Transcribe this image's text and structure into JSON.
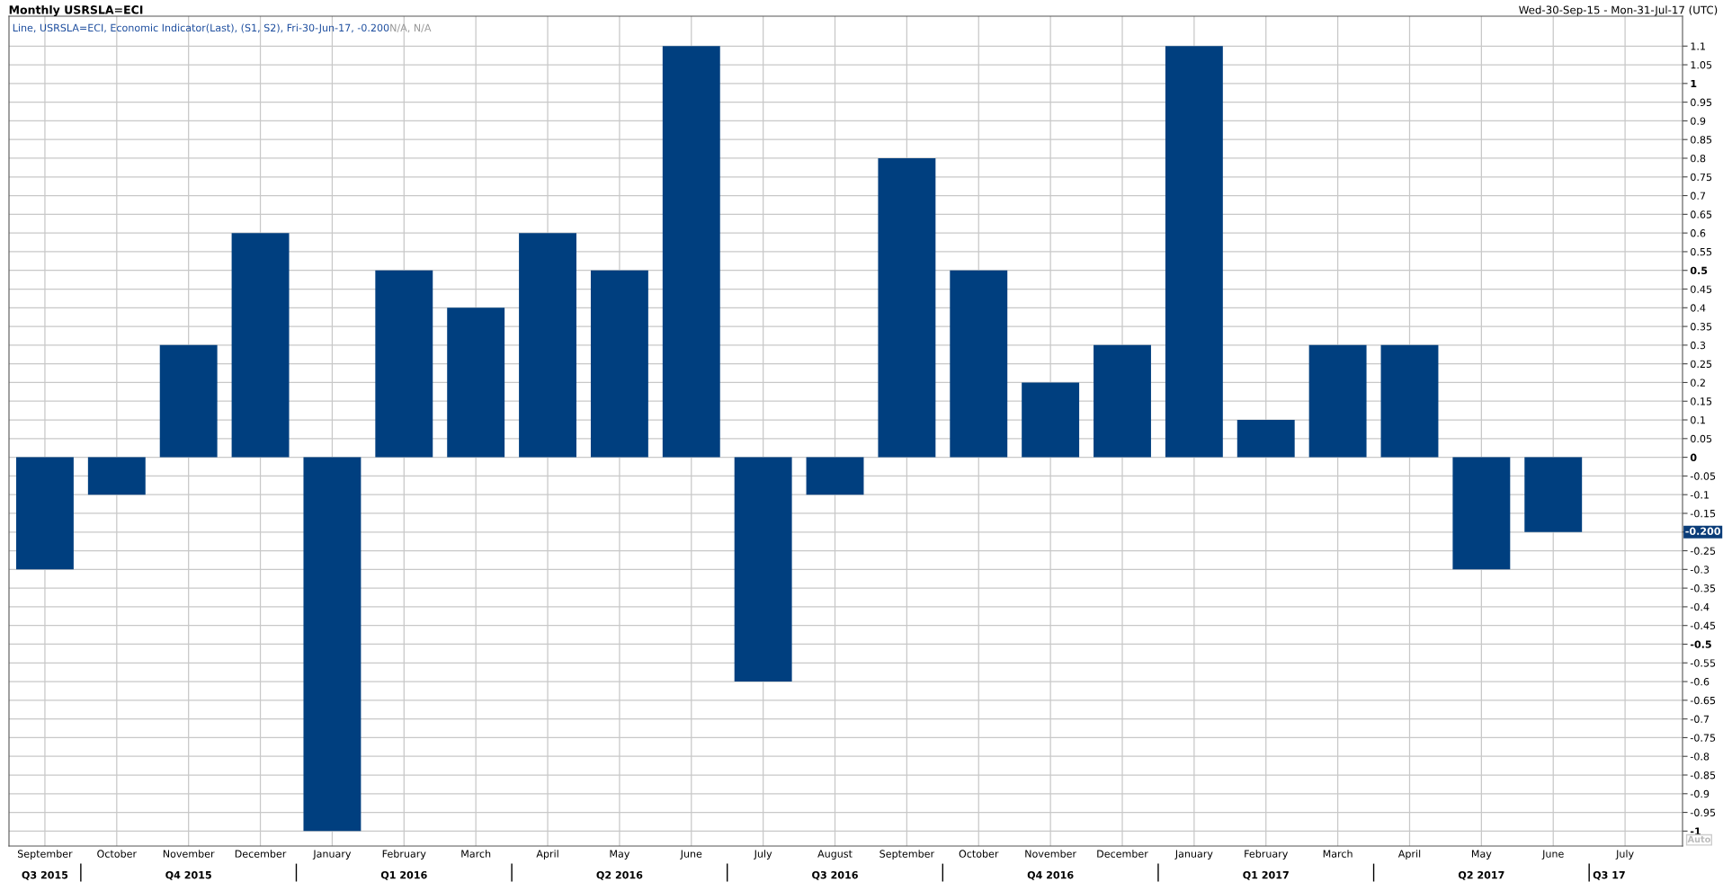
{
  "chart_data": {
    "type": "bar",
    "title": "Monthly USRSLA=ECI",
    "categories": [
      "September",
      "October",
      "November",
      "December",
      "January",
      "February",
      "March",
      "April",
      "May",
      "June",
      "July",
      "August",
      "September",
      "October",
      "November",
      "December",
      "January",
      "February",
      "March",
      "April",
      "May",
      "June",
      "July"
    ],
    "values": [
      -0.3,
      -0.1,
      0.3,
      0.6,
      -1,
      0.5,
      0.4,
      0.6,
      0.5,
      1.1,
      -0.6,
      -0.1,
      0.8,
      0.5,
      0.2,
      0.3,
      1.1,
      0.1,
      0.3,
      0.3,
      -0.3,
      -0.2,
      null
    ],
    "color": "#003f7f",
    "ylim": [
      -1.04,
      1.18
    ],
    "yticks": [
      -1,
      -0.95,
      -0.9,
      -0.85,
      -0.8,
      -0.75,
      -0.7,
      -0.65,
      -0.6,
      -0.55,
      -0.5,
      -0.45,
      -0.4,
      -0.35,
      -0.3,
      -0.25,
      {
        "value": -0.2,
        "label": null
      },
      -0.15,
      -0.1,
      -0.05,
      0,
      0.05,
      0.1,
      0.15,
      0.2,
      0.25,
      0.3,
      0.35,
      0.4,
      0.45,
      0.5,
      0.55,
      0.6,
      0.65,
      0.7,
      0.75,
      0.8,
      0.85,
      0.9,
      0.95,
      1,
      1.05,
      1.1
    ],
    "grid": true,
    "annotations": [
      "Wed-30-Sep-15 - Mon-31-Jul-17 (UTC)",
      "Line, USRSLA=ECI, Economic Indicator(Last), (S1, S2), Fri-30-Jun-17, -0.200",
      "N/A, N/A",
      {
        "text": "-0.200",
        "y": -0.2
      },
      "Auto",
      "Q3 2015",
      "Q4 2015",
      "Q1 2016",
      "Q2 2016",
      "Q3 2016",
      "Q4 2016",
      "Q1 2017",
      "Q2 2017",
      "Q3 17"
    ]
  }
}
